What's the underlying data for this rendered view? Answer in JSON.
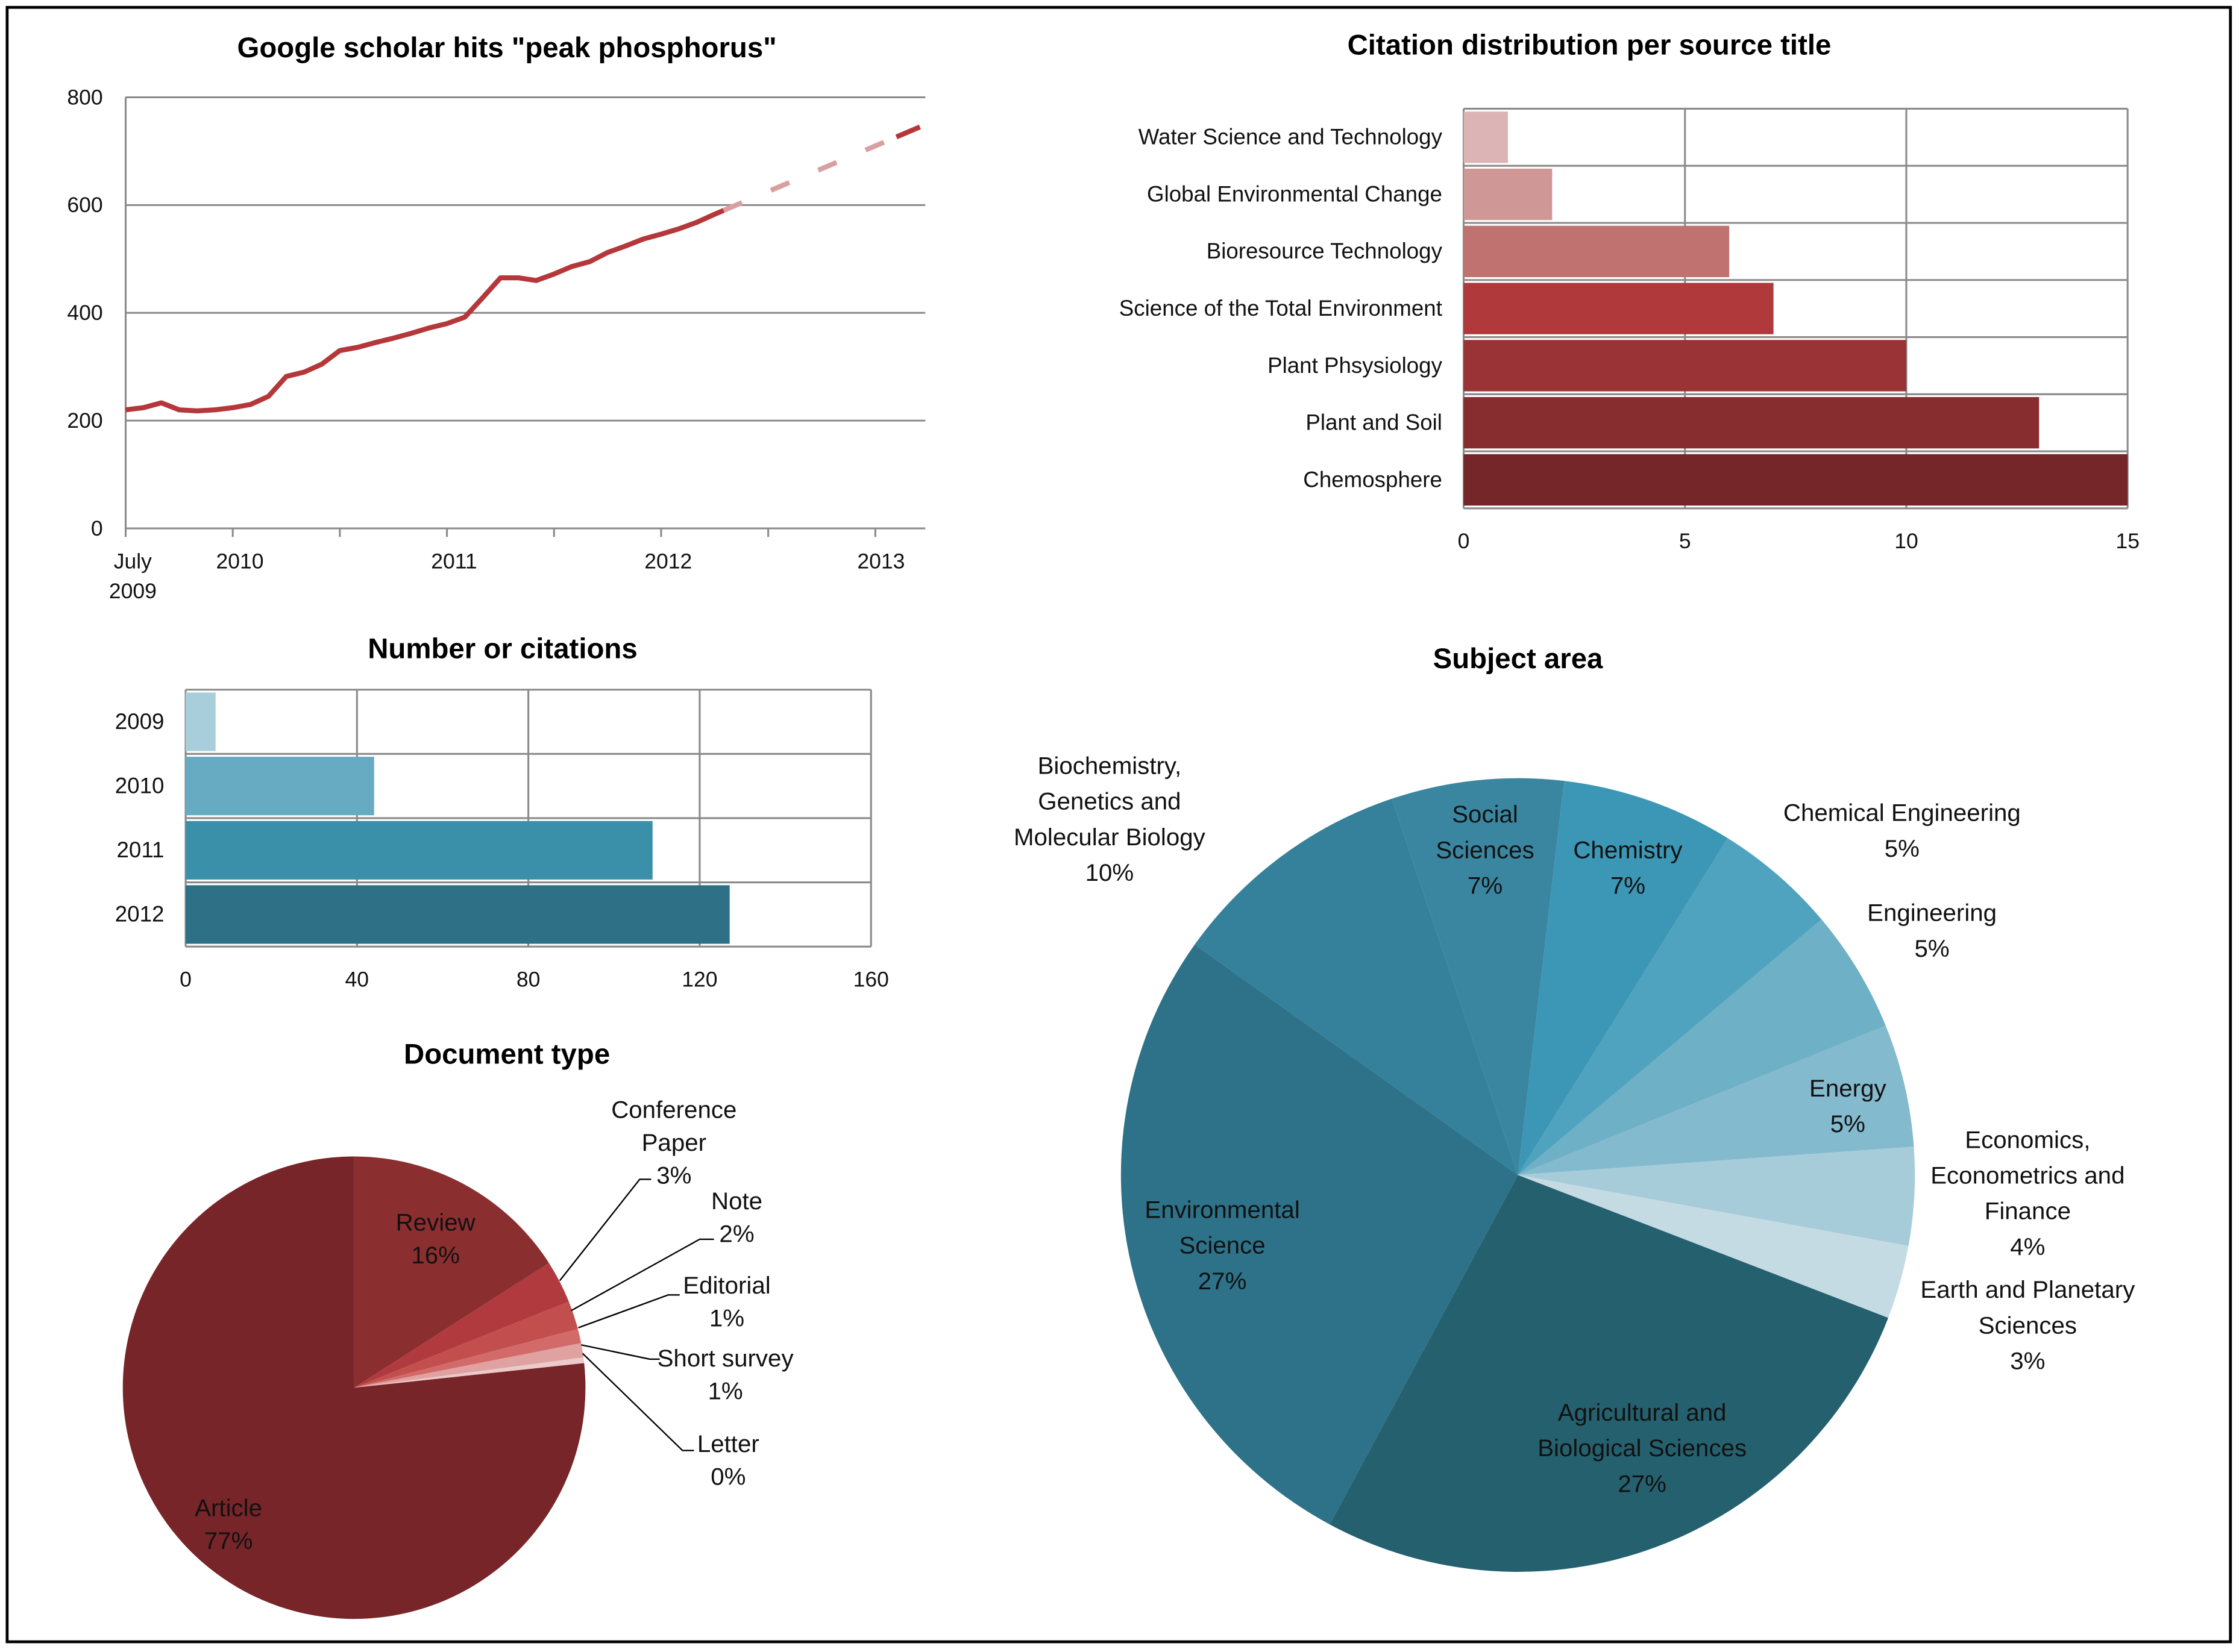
{
  "chart_data": [
    {
      "id": "scholar",
      "type": "line",
      "title": "Google scholar hits \"peak phosphorus\"",
      "x_unit": "months since July 2009",
      "x_tick_labels": [
        [
          "July",
          "2009"
        ],
        [
          "2010"
        ],
        [
          "2011"
        ],
        [
          "2012"
        ],
        [
          "2013"
        ]
      ],
      "ylim": [
        0,
        800
      ],
      "y_ticks": [
        0,
        200,
        400,
        600,
        800
      ],
      "grid": true,
      "color": "#b5373a",
      "projection_color_light": "#d9a0a0",
      "series": [
        {
          "name": "observed",
          "x": [
            0,
            1,
            2,
            3,
            4,
            5,
            6,
            7,
            8,
            9,
            10,
            11,
            12,
            13,
            14,
            15,
            16,
            17,
            18,
            19,
            20,
            21,
            22,
            23,
            24,
            25,
            26,
            27,
            28,
            29,
            30,
            31,
            32,
            33,
            33.5
          ],
          "values": [
            220,
            224,
            233,
            220,
            218,
            220,
            224,
            230,
            245,
            282,
            290,
            305,
            330,
            336,
            345,
            353,
            362,
            372,
            380,
            392,
            428,
            465,
            465,
            460,
            472,
            486,
            495,
            512,
            524,
            537,
            546,
            556,
            568,
            583,
            590
          ]
        },
        {
          "name": "projection",
          "style": "dashed",
          "x": [
            33.5,
            44.5
          ],
          "values": [
            590,
            745
          ]
        }
      ]
    },
    {
      "id": "sources",
      "type": "bar",
      "orientation": "horizontal",
      "title": "Citation distribution per source title",
      "categories": [
        "Water Science and Technology",
        "Global Environmental Change",
        "Bioresource Technology",
        "Science of the Total Environment",
        "Plant Phsysiology",
        "Plant and Soil",
        "Chemosphere"
      ],
      "values": [
        1,
        2,
        6,
        7,
        10,
        13,
        15
      ],
      "colors": [
        "#dcb4b5",
        "#cf9897",
        "#c07270",
        "#b0393c",
        "#9a3335",
        "#872d2f",
        "#742628"
      ],
      "xlim": [
        0,
        15
      ],
      "x_ticks": [
        0,
        5,
        10,
        15
      ]
    },
    {
      "id": "citations",
      "type": "bar",
      "orientation": "horizontal",
      "title": "Number or citations",
      "categories": [
        "2009",
        "2010",
        "2011",
        "2012"
      ],
      "values": [
        7,
        44,
        109,
        127
      ],
      "colors": [
        "#a9cedb",
        "#67abc2",
        "#3a8fa9",
        "#2e7086"
      ],
      "xlim": [
        0,
        160
      ],
      "x_ticks": [
        0,
        40,
        80,
        120,
        160
      ]
    },
    {
      "id": "doctype",
      "type": "pie",
      "title": "Document type",
      "slices": [
        {
          "name": "Review",
          "lines": [
            "Review",
            "16%"
          ],
          "value": 16,
          "color": "#8b2e30"
        },
        {
          "name": "Conference Paper",
          "lines": [
            "Conference",
            "Paper",
            "3%"
          ],
          "value": 3,
          "color": "#b03a3d"
        },
        {
          "name": "Note",
          "lines": [
            "Note",
            "2%"
          ],
          "value": 2,
          "color": "#c24f4e"
        },
        {
          "name": "Editorial",
          "lines": [
            "Editorial",
            "1%"
          ],
          "value": 1,
          "color": "#d26a69"
        },
        {
          "name": "Short survey",
          "lines": [
            "Short survey",
            "1%"
          ],
          "value": 1,
          "color": "#dfa2a0"
        },
        {
          "name": "Letter",
          "lines": [
            "Letter",
            "0%"
          ],
          "value": 0.4,
          "color": "#eccac9"
        },
        {
          "name": "Article",
          "lines": [
            "Article",
            "77%"
          ],
          "value": 77,
          "color": "#772528"
        }
      ]
    },
    {
      "id": "subject",
      "type": "pie",
      "title": "Subject area",
      "slices": [
        {
          "name": "Social Sciences",
          "lines": [
            "Social",
            "Sciences",
            "7%"
          ],
          "value": 7,
          "color": "#3a86a0"
        },
        {
          "name": "Chemistry",
          "lines": [
            "Chemistry",
            "7%"
          ],
          "value": 7,
          "color": "#3b97b5"
        },
        {
          "name": "Chemical Engineering",
          "lines": [
            "Chemical Engineering",
            "5%"
          ],
          "value": 5,
          "color": "#4fa3bf"
        },
        {
          "name": "Engineering",
          "lines": [
            "Engineering",
            "5%"
          ],
          "value": 5,
          "color": "#6eb0c6"
        },
        {
          "name": "Energy",
          "lines": [
            "Energy",
            "5%"
          ],
          "value": 5,
          "color": "#84bacd"
        },
        {
          "name": "Economics, Econometrics and Finance",
          "lines": [
            "Economics,",
            "Econometrics and",
            "Finance",
            "4%"
          ],
          "value": 4,
          "color": "#a7ccd9"
        },
        {
          "name": "Earth and Planetary Sciences",
          "lines": [
            "Earth and Planetary",
            "Sciences",
            "3%"
          ],
          "value": 3,
          "color": "#c5dbe3"
        },
        {
          "name": "Agricultural and Biological Sciences",
          "lines": [
            "Agricultural and",
            "Biological Sciences",
            "27%"
          ],
          "value": 27,
          "color": "#25606f"
        },
        {
          "name": "Environmental Science",
          "lines": [
            "Environmental",
            "Science",
            "27%"
          ],
          "value": 27,
          "color": "#2d7289"
        },
        {
          "name": "Biochemistry, Genetics and Molecular Biology",
          "lines": [
            "Biochemistry,",
            "Genetics and",
            "Molecular Biology",
            "10%"
          ],
          "value": 10,
          "color": "#35819b"
        }
      ]
    }
  ]
}
